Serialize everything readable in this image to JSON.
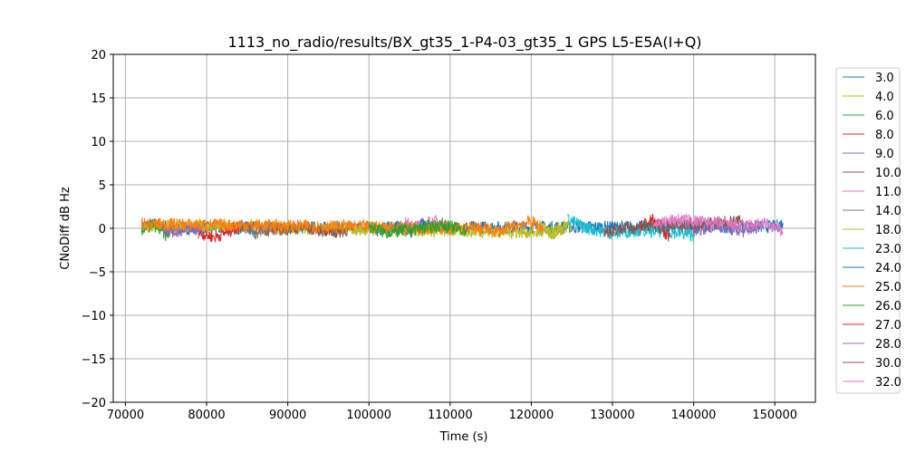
{
  "chart_data": {
    "type": "line",
    "title": "1113_no_radio/results/BX_gt35_1-P4-03_gt35_1 GPS L5-E5A(I+Q)",
    "xlabel": "Time (s)",
    "ylabel": "CNoDiff dB Hz",
    "xlim": [
      68500,
      155000
    ],
    "ylim": [
      -20,
      20
    ],
    "xticks": [
      70000,
      80000,
      90000,
      100000,
      110000,
      120000,
      130000,
      140000,
      150000
    ],
    "xtick_labels": [
      "70000",
      "80000",
      "90000",
      "100000",
      "110000",
      "120000",
      "130000",
      "140000",
      "150000"
    ],
    "yticks": [
      -20,
      -15,
      -10,
      -5,
      0,
      5,
      10,
      15,
      20
    ],
    "ytick_labels": [
      "−20",
      "−15",
      "−10",
      "−5",
      "0",
      "5",
      "10",
      "15",
      "20"
    ],
    "grid": true,
    "legend_position": "right-outside",
    "series": [
      {
        "name": "3.0",
        "color": "#1f77b4",
        "x": [
          72000,
          74000,
          76000,
          150000,
          151000
        ],
        "y": [
          0.3,
          0.5,
          0.0,
          0.2,
          0.6
        ]
      },
      {
        "name": "4.0",
        "color": "#bcbd22",
        "x": [
          72000,
          74000,
          122500,
          124000,
          125000
        ],
        "y": [
          0.2,
          0.3,
          -0.5,
          0.3,
          0.0
        ]
      },
      {
        "name": "6.0",
        "color": "#2ca02c",
        "x": [
          72000,
          73500,
          75000,
          76000
        ],
        "y": [
          -0.2,
          0.4,
          -0.8,
          0.0
        ]
      },
      {
        "name": "8.0",
        "color": "#d62728",
        "x": [
          79000,
          81000,
          83000,
          84000
        ],
        "y": [
          -0.5,
          -1.0,
          -0.2,
          0.1
        ]
      },
      {
        "name": "9.0",
        "color": "#9467bd",
        "x": [
          74500,
          76000,
          78000,
          79500
        ],
        "y": [
          0.2,
          -0.4,
          0.0,
          -0.3
        ]
      },
      {
        "name": "10.0",
        "color": "#8c564b",
        "x": [
          84000,
          88000,
          92000,
          96000,
          98000
        ],
        "y": [
          0.3,
          -0.2,
          0.1,
          -0.5,
          0.0
        ]
      },
      {
        "name": "11.0",
        "color": "#e377c2",
        "x": [
          104500,
          106000,
          108000,
          110000
        ],
        "y": [
          0.6,
          0.3,
          0.8,
          0.4
        ]
      },
      {
        "name": "14.0",
        "color": "#7f7f7f",
        "x": [
          84500,
          86000,
          88000
        ],
        "y": [
          0.0,
          -0.6,
          0.2
        ]
      },
      {
        "name": "18.0",
        "color": "#bcbd22",
        "x": [
          121000,
          122500,
          124000
        ],
        "y": [
          0.4,
          -0.6,
          0.0
        ]
      },
      {
        "name": "23.0",
        "color": "#17becf",
        "x": [
          124500,
          127000,
          130000,
          133000,
          137000,
          140000
        ],
        "y": [
          1.0,
          0.0,
          -0.6,
          -0.2,
          -0.4,
          -0.8
        ]
      },
      {
        "name": "24.0",
        "color": "#1f77b4",
        "x": [
          101000,
          103000,
          105000,
          107000
        ],
        "y": [
          -0.3,
          0.2,
          -0.4,
          0.5
        ]
      },
      {
        "name": "25.0",
        "color": "#ff7f0e",
        "x": [
          72000,
          114000,
          116000,
          118000,
          120000,
          121500
        ],
        "y": [
          0.5,
          0.0,
          -0.4,
          0.3,
          0.8,
          0.0
        ]
      },
      {
        "name": "26.0",
        "color": "#2ca02c",
        "x": [
          100000,
          102000,
          109000,
          112000
        ],
        "y": [
          0.3,
          -0.5,
          0.4,
          -0.3
        ]
      },
      {
        "name": "27.0",
        "color": "#d62728",
        "x": [
          133500,
          135000,
          137000
        ],
        "y": [
          0.3,
          1.0,
          -1.0
        ]
      },
      {
        "name": "28.0",
        "color": "#9467bd",
        "x": [
          140000,
          143000,
          146000,
          148000
        ],
        "y": [
          -0.2,
          0.3,
          -0.4,
          0.2
        ]
      },
      {
        "name": "30.0",
        "color": "#8c564b",
        "x": [
          129000,
          131000,
          142000,
          146000
        ],
        "y": [
          -0.4,
          0.0,
          0.6,
          0.8
        ]
      },
      {
        "name": "32.0",
        "color": "#e377c2",
        "x": [
          135000,
          138000,
          146000,
          149000,
          151000
        ],
        "y": [
          0.5,
          1.0,
          0.3,
          0.5,
          -0.4
        ]
      }
    ]
  }
}
